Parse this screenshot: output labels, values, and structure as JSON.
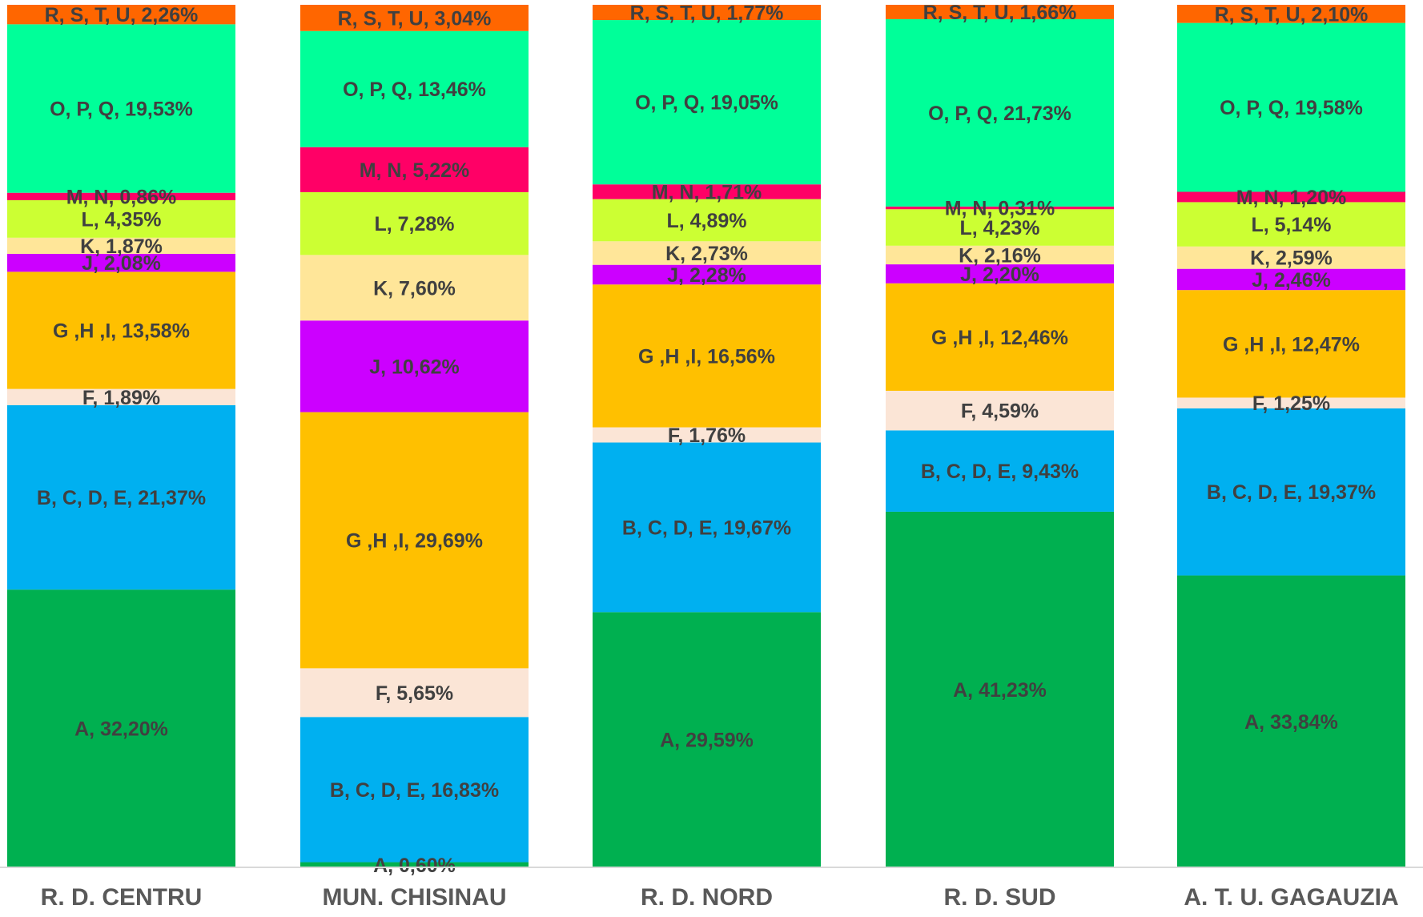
{
  "chart_data": {
    "type": "bar",
    "stacked": true,
    "percent_stacked": true,
    "title": "",
    "xlabel": "",
    "ylabel": "",
    "ylim": [
      0,
      100
    ],
    "grid": false,
    "categories": [
      "R. D. CENTRU",
      "MUN. CHISINAU",
      "R. D. NORD",
      "R. D. SUD",
      "A. T. U. GAGAUZIA"
    ],
    "series": [
      {
        "name": "A",
        "color": "#00B050",
        "values": [
          32.2,
          0.6,
          29.59,
          41.23,
          33.84
        ],
        "labels": [
          "A, 32,20%",
          "A, 0,60%",
          "A, 29,59%",
          "A, 41,23%",
          "A, 33,84%"
        ]
      },
      {
        "name": "B, C, D, E",
        "color": "#00B0F0",
        "values": [
          21.37,
          16.83,
          19.67,
          9.43,
          19.37
        ],
        "labels": [
          "B, C, D, E, 21,37%",
          "B, C, D, E, 16,83%",
          "B, C, D, E, 19,67%",
          "B, C, D, E, 9,43%",
          "B, C, D, E, 19,37%"
        ]
      },
      {
        "name": "F",
        "color": "#FBE5D6",
        "values": [
          1.89,
          5.65,
          1.76,
          4.59,
          1.25
        ],
        "labels": [
          "F, 1,89%",
          "F, 5,65%",
          "F, 1,76%",
          "F, 4,59%",
          "F, 1,25%"
        ]
      },
      {
        "name": "G ,H ,I",
        "color": "#FFC000",
        "values": [
          13.58,
          29.69,
          16.56,
          12.46,
          12.47
        ],
        "labels": [
          "G ,H ,I, 13,58%",
          "G ,H ,I, 29,69%",
          "G ,H ,I, 16,56%",
          "G ,H ,I, 12,46%",
          "G ,H ,I, 12,47%"
        ]
      },
      {
        "name": "J",
        "color": "#CC00FF",
        "values": [
          2.08,
          10.62,
          2.28,
          2.2,
          2.46
        ],
        "labels": [
          "J, 2,08%",
          "J, 10,62%",
          "J, 2,28%",
          "J, 2,20%",
          "J, 2,46%"
        ]
      },
      {
        "name": "K",
        "color": "#FFE699",
        "values": [
          1.87,
          7.6,
          2.73,
          2.16,
          2.59
        ],
        "labels": [
          "K, 1,87%",
          "K, 7,60%",
          "K, 2,73%",
          "K, 2,16%",
          "K, 2,59%"
        ]
      },
      {
        "name": "L",
        "color": "#CCFF33",
        "values": [
          4.35,
          7.28,
          4.89,
          4.23,
          5.14
        ],
        "labels": [
          "L, 4,35%",
          "L, 7,28%",
          "L, 4,89%",
          "L, 4,23%",
          "L, 5,14%"
        ]
      },
      {
        "name": "M, N",
        "color": "#FF0066",
        "values": [
          0.86,
          5.22,
          1.71,
          0.31,
          1.2
        ],
        "labels": [
          "M, N, 0,86%",
          "M, N, 5,22%",
          "M, N, 1,71%",
          "M, N, 0,31%",
          "M, N, 1,20%"
        ]
      },
      {
        "name": "O, P, Q",
        "color": "#00FF99",
        "values": [
          19.53,
          13.46,
          19.05,
          21.73,
          19.58
        ],
        "labels": [
          "O, P, Q, 19,53%",
          "O, P, Q, 13,46%",
          "O, P, Q, 19,05%",
          "O, P, Q, 21,73%",
          "O, P, Q, 19,58%"
        ]
      },
      {
        "name": "R, S, T, U",
        "color": "#FF6600",
        "values": [
          2.26,
          3.04,
          1.77,
          1.66,
          2.1
        ],
        "labels": [
          "R, S, T, U, 2,26%",
          "R, S, T, U, 3,04%",
          "R, S, T, U, 1,77%",
          "R, S, T, U, 1,66%",
          "R, S, T, U, 2,10%"
        ]
      }
    ]
  }
}
